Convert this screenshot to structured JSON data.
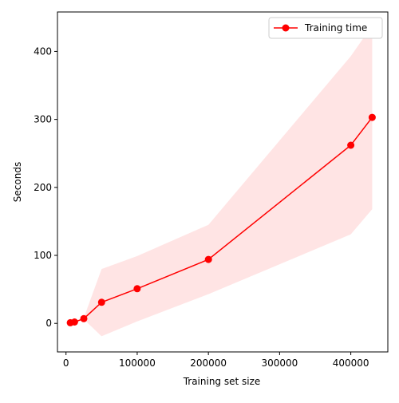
{
  "chart_data": {
    "type": "line",
    "xlabel": "Training set size",
    "ylabel": "Seconds",
    "xlim": [
      -12000,
      452000
    ],
    "ylim": [
      -42,
      458
    ],
    "xticks": [
      0,
      100000,
      200000,
      300000,
      400000
    ],
    "xtick_labels": [
      "0",
      "100000",
      "200000",
      "300000",
      "400000"
    ],
    "yticks": [
      0,
      100,
      200,
      300,
      400
    ],
    "ytick_labels": [
      "0",
      "100",
      "200",
      "300",
      "400"
    ],
    "legend_position": "top-right",
    "grid": false,
    "series": [
      {
        "name": "Training time",
        "color": "#ff0000",
        "marker": "circle",
        "x": [
          6000,
          12000,
          25000,
          50000,
          100000,
          200000,
          400000,
          430000
        ],
        "y": [
          1,
          2,
          7,
          31,
          51,
          94,
          262,
          303
        ],
        "band_color": "#ffdddd",
        "lower": [
          1,
          2,
          6,
          -19,
          3,
          43,
          131,
          168
        ],
        "upper": [
          1,
          2,
          8,
          80,
          99,
          145,
          393,
          438
        ]
      }
    ]
  }
}
